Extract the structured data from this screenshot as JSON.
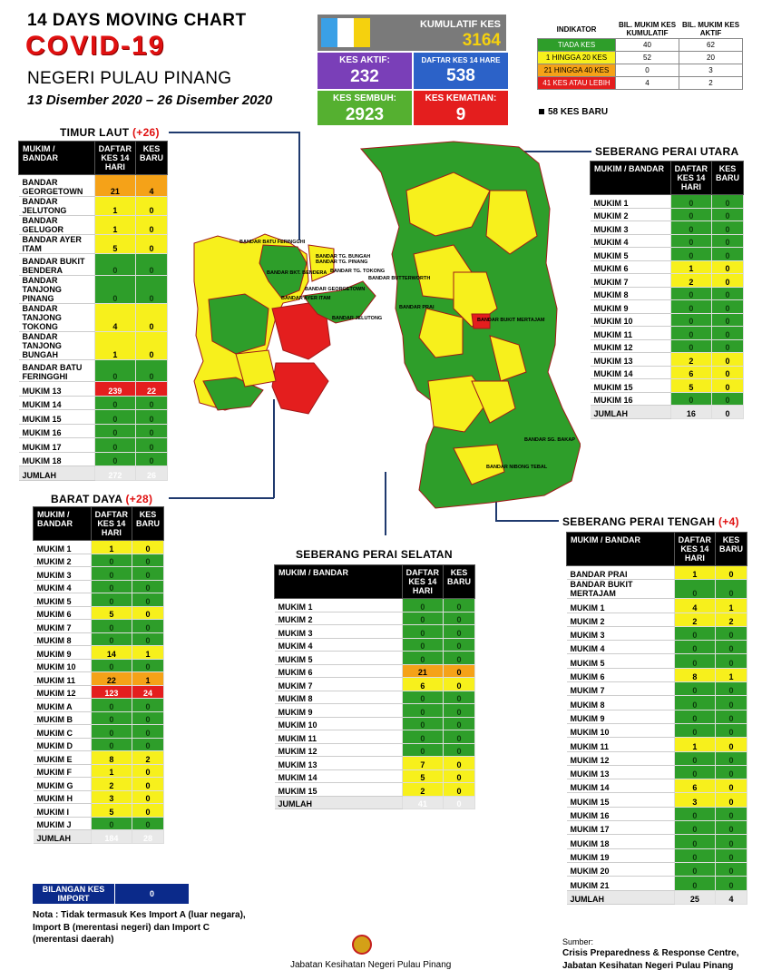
{
  "header": {
    "line1": "14  DAYS MOVING CHART",
    "line2": "COVID-19",
    "line3": "NEGERI PULAU PINANG",
    "line4": "13 Disember 2020 – 26 Disember 2020"
  },
  "kpi": {
    "kumulatif_label": "KUMULATIF KES",
    "kumulatif_value": "3164",
    "aktif_label": "KES AKTIF:",
    "aktif_value": "232",
    "daftar_label": "DAFTAR KES 14 HARE",
    "daftar_value": "538",
    "sembuh_label": "KES SEMBUH:",
    "sembuh_value": "2923",
    "kematian_label": "KES KEMATIAN:",
    "kematian_value": "9"
  },
  "indicator": {
    "h1": "INDIKATOR",
    "h2": "BIL. MUKIM KES KUMULATIF",
    "h3": "BIL. MUKIM KES AKTIF",
    "rows": [
      {
        "label": "TIADA KES",
        "a": "40",
        "b": "62"
      },
      {
        "label": "1 HINGGA 20 KES",
        "a": "52",
        "b": "20"
      },
      {
        "label": "21 HINGGA 40 KES",
        "a": "0",
        "b": "3"
      },
      {
        "label": "41 KES ATAU LEBIH",
        "a": "4",
        "b": "2"
      }
    ],
    "new_cases": "58 KES BARU"
  },
  "timur_laut": {
    "title": "TIMUR LAUT",
    "delta": "(+26)",
    "h1": "MUKIM / BANDAR",
    "h2": "DAFTAR KES 14 HARI",
    "h3": "KES BARU",
    "rows": [
      [
        "BANDAR GEORGETOWN",
        "21",
        "4",
        "o"
      ],
      [
        "BANDAR JELUTONG",
        "1",
        "0",
        "y"
      ],
      [
        "BANDAR GELUGOR",
        "1",
        "0",
        "y"
      ],
      [
        "BANDAR AYER ITAM",
        "5",
        "0",
        "y"
      ],
      [
        "BANDAR BUKIT BENDERA",
        "0",
        "0",
        "g"
      ],
      [
        "BANDAR TANJONG PINANG",
        "0",
        "0",
        "g"
      ],
      [
        "BANDAR TANJONG TOKONG",
        "4",
        "0",
        "y"
      ],
      [
        "BANDAR TANJONG BUNGAH",
        "1",
        "0",
        "y"
      ],
      [
        "BANDAR BATU FERINGGHI",
        "0",
        "0",
        "g"
      ],
      [
        "MUKIM 13",
        "239",
        "22",
        "r"
      ],
      [
        "MUKIM 14",
        "0",
        "0",
        "g"
      ],
      [
        "MUKIM 15",
        "0",
        "0",
        "g"
      ],
      [
        "MUKIM 16",
        "0",
        "0",
        "g"
      ],
      [
        "MUKIM 17",
        "0",
        "0",
        "g"
      ],
      [
        "MUKIM 18",
        "0",
        "0",
        "g"
      ]
    ],
    "total_label": "JUMLAH",
    "total_a": "272",
    "total_b": "26"
  },
  "barat_daya": {
    "title": "BARAT DAYA",
    "delta": "(+28)",
    "h1": "MUKIM / BANDAR",
    "h2": "DAFTAR KES 14 HARI",
    "h3": "KES BARU",
    "rows": [
      [
        "MUKIM 1",
        "1",
        "0",
        "y"
      ],
      [
        "MUKIM 2",
        "0",
        "0",
        "g"
      ],
      [
        "MUKIM 3",
        "0",
        "0",
        "g"
      ],
      [
        "MUKIM 4",
        "0",
        "0",
        "g"
      ],
      [
        "MUKIM 5",
        "0",
        "0",
        "g"
      ],
      [
        "MUKIM 6",
        "5",
        "0",
        "y"
      ],
      [
        "MUKIM 7",
        "0",
        "0",
        "g"
      ],
      [
        "MUKIM 8",
        "0",
        "0",
        "g"
      ],
      [
        "MUKIM 9",
        "14",
        "1",
        "y"
      ],
      [
        "MUKIM 10",
        "0",
        "0",
        "g"
      ],
      [
        "MUKIM 11",
        "22",
        "1",
        "o"
      ],
      [
        "MUKIM 12",
        "123",
        "24",
        "r"
      ],
      [
        "MUKIM A",
        "0",
        "0",
        "g"
      ],
      [
        "MUKIM B",
        "0",
        "0",
        "g"
      ],
      [
        "MUKIM C",
        "0",
        "0",
        "g"
      ],
      [
        "MUKIM D",
        "0",
        "0",
        "g"
      ],
      [
        "MUKIM E",
        "8",
        "2",
        "y"
      ],
      [
        "MUKIM F",
        "1",
        "0",
        "y"
      ],
      [
        "MUKIM G",
        "2",
        "0",
        "y"
      ],
      [
        "MUKIM H",
        "3",
        "0",
        "y"
      ],
      [
        "MUKIM I",
        "5",
        "0",
        "y"
      ],
      [
        "MUKIM J",
        "0",
        "0",
        "g"
      ]
    ],
    "total_label": "JUMLAH",
    "total_a": "184",
    "total_b": "28"
  },
  "sp_utara": {
    "title": "SEBERANG PERAI UTARA",
    "h1": "MUKIM / BANDAR",
    "h2": "DAFTAR KES 14 HARI",
    "h3": "KES BARU",
    "rows": [
      [
        "MUKIM 1",
        "0",
        "0",
        "g"
      ],
      [
        "MUKIM 2",
        "0",
        "0",
        "g"
      ],
      [
        "MUKIM 3",
        "0",
        "0",
        "g"
      ],
      [
        "MUKIM 4",
        "0",
        "0",
        "g"
      ],
      [
        "MUKIM 5",
        "0",
        "0",
        "g"
      ],
      [
        "MUKIM 6",
        "1",
        "0",
        "y"
      ],
      [
        "MUKIM 7",
        "2",
        "0",
        "y"
      ],
      [
        "MUKIM 8",
        "0",
        "0",
        "g"
      ],
      [
        "MUKIM 9",
        "0",
        "0",
        "g"
      ],
      [
        "MUKIM 10",
        "0",
        "0",
        "g"
      ],
      [
        "MUKIM 11",
        "0",
        "0",
        "g"
      ],
      [
        "MUKIM 12",
        "0",
        "0",
        "g"
      ],
      [
        "MUKIM 13",
        "2",
        "0",
        "y"
      ],
      [
        "MUKIM 14",
        "6",
        "0",
        "y"
      ],
      [
        "MUKIM 15",
        "5",
        "0",
        "y"
      ],
      [
        "MUKIM 16",
        "0",
        "0",
        "g"
      ]
    ],
    "total_label": "JUMLAH",
    "total_a": "16",
    "total_b": "0"
  },
  "sp_selatan": {
    "title": "SEBERANG PERAI SELATAN",
    "h1": "MUKIM / BANDAR",
    "h2": "DAFTAR KES 14 HARI",
    "h3": "KES BARU",
    "rows": [
      [
        "MUKIM 1",
        "0",
        "0",
        "g"
      ],
      [
        "MUKIM 2",
        "0",
        "0",
        "g"
      ],
      [
        "MUKIM 3",
        "0",
        "0",
        "g"
      ],
      [
        "MUKIM 4",
        "0",
        "0",
        "g"
      ],
      [
        "MUKIM 5",
        "0",
        "0",
        "g"
      ],
      [
        "MUKIM 6",
        "21",
        "0",
        "o"
      ],
      [
        "MUKIM 7",
        "6",
        "0",
        "y"
      ],
      [
        "MUKIM 8",
        "0",
        "0",
        "g"
      ],
      [
        "MUKIM 9",
        "0",
        "0",
        "g"
      ],
      [
        "MUKIM 10",
        "0",
        "0",
        "g"
      ],
      [
        "MUKIM 11",
        "0",
        "0",
        "g"
      ],
      [
        "MUKIM 12",
        "0",
        "0",
        "g"
      ],
      [
        "MUKIM 13",
        "7",
        "0",
        "y"
      ],
      [
        "MUKIM 14",
        "5",
        "0",
        "y"
      ],
      [
        "MUKIM 15",
        "2",
        "0",
        "y"
      ]
    ],
    "total_label": "JUMLAH",
    "total_a": "41",
    "total_b": "0"
  },
  "sp_tengah": {
    "title": "SEBERANG PERAI TENGAH",
    "delta": "(+4)",
    "h1": "MUKIM / BANDAR",
    "h2": "DAFTAR KES 14 HARI",
    "h3": "KES BARU",
    "rows": [
      [
        "BANDAR PRAI",
        "1",
        "0",
        "y"
      ],
      [
        "BANDAR BUKIT MERTAJAM",
        "0",
        "0",
        "g"
      ],
      [
        "MUKIM 1",
        "4",
        "1",
        "y"
      ],
      [
        "MUKIM 2",
        "2",
        "2",
        "y"
      ],
      [
        "MUKIM 3",
        "0",
        "0",
        "g"
      ],
      [
        "MUKIM 4",
        "0",
        "0",
        "g"
      ],
      [
        "MUKIM 5",
        "0",
        "0",
        "g"
      ],
      [
        "MUKIM 6",
        "8",
        "1",
        "y"
      ],
      [
        "MUKIM 7",
        "0",
        "0",
        "g"
      ],
      [
        "MUKIM 8",
        "0",
        "0",
        "g"
      ],
      [
        "MUKIM 9",
        "0",
        "0",
        "g"
      ],
      [
        "MUKIM 10",
        "0",
        "0",
        "g"
      ],
      [
        "MUKIM 11",
        "1",
        "0",
        "y"
      ],
      [
        "MUKIM 12",
        "0",
        "0",
        "g"
      ],
      [
        "MUKIM 13",
        "0",
        "0",
        "g"
      ],
      [
        "MUKIM 14",
        "6",
        "0",
        "y"
      ],
      [
        "MUKIM 15",
        "3",
        "0",
        "y"
      ],
      [
        "MUKIM 16",
        "0",
        "0",
        "g"
      ],
      [
        "MUKIM 17",
        "0",
        "0",
        "g"
      ],
      [
        "MUKIM 18",
        "0",
        "0",
        "g"
      ],
      [
        "MUKIM 19",
        "0",
        "0",
        "g"
      ],
      [
        "MUKIM 20",
        "0",
        "0",
        "g"
      ],
      [
        "MUKIM 21",
        "0",
        "0",
        "g"
      ]
    ],
    "total_label": "JUMLAH",
    "total_a": "25",
    "total_b": "4"
  },
  "import": {
    "label": "BILANGAN KES IMPORT",
    "value": "0"
  },
  "note": "Nota : Tidak termasuk Kes Import A (luar negara), Import B (merentasi negeri) dan Import C (merentasi daerah)",
  "footer": "Jabatan Kesihatan Negeri Pulau Pinang",
  "source_label": "Sumber:",
  "source_line1": "Crisis Preparedness & Response Centre,",
  "source_line2": "Jabatan Kesihatan Negeri Pulau Pinang",
  "map_labels": [
    "BANDAR BATU FERINGGHI",
    "BANDAR TG. BUNGAH",
    "BANDAR TG. PINANG",
    "BANDAR TG. TOKONG",
    "BANDAR BKT. BENDERA",
    "BANDAR GEORGETOWN",
    "BANDAR AYER ITAM",
    "BANDAR JELUTONG",
    "BANDAR BUTTERWORTH",
    "BANDAR PRAI",
    "BANDAR BUKIT MERTAJAM",
    "BANDAR SG. BAKAP",
    "BANDAR NIBONG TEBAL"
  ]
}
